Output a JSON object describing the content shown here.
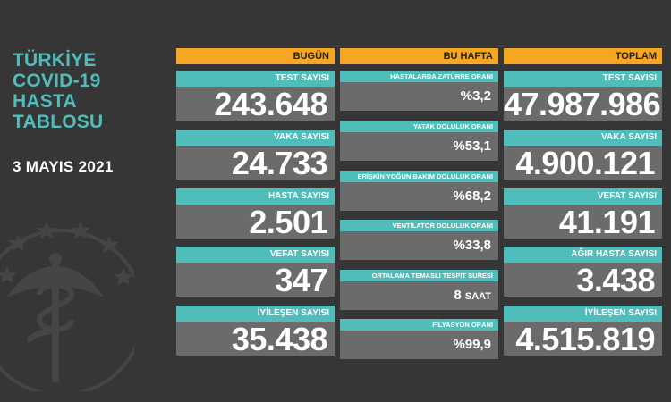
{
  "title_lines": [
    "TÜRKİYE",
    "COVID-19",
    "HASTA",
    "TABLOSU"
  ],
  "date": "3 MAYIS 2021",
  "columns": {
    "today": {
      "header": "BUGÜN",
      "cards": [
        {
          "label": "TEST SAYISI",
          "value": "243.648"
        },
        {
          "label": "VAKA SAYISI",
          "value": "24.733"
        },
        {
          "label": "HASTA SAYISI",
          "value": "2.501"
        },
        {
          "label": "VEFAT SAYISI",
          "value": "347"
        },
        {
          "label": "İYİLEŞEN SAYISI",
          "value": "35.438"
        }
      ]
    },
    "week": {
      "header": "BU HAFTA",
      "cards": [
        {
          "label": "HASTALARDA ZATÜRRE ORANI",
          "value": "%3,2"
        },
        {
          "label": "YATAK DOLULUK ORANI",
          "value": "%53,1"
        },
        {
          "label": "ERİŞKİN YOĞUN BAKIM DOLULUK ORANI",
          "value": "%68,2"
        },
        {
          "label": "VENTİLATÖR DOLULUK ORANI",
          "value": "%33,8"
        },
        {
          "label": "ORTALAMA TEMASLI TESPİT SÜRESİ",
          "value": "8",
          "unit": "SAAT"
        },
        {
          "label": "FİLYASYON ORANI",
          "value": "%99,9"
        }
      ]
    },
    "total": {
      "header": "TOPLAM",
      "cards": [
        {
          "label": "TEST SAYISI",
          "value": "47.987.986"
        },
        {
          "label": "VAKA SAYISI",
          "value": "4.900.121"
        },
        {
          "label": "VEFAT SAYISI",
          "value": "41.191"
        },
        {
          "label": "AĞIR HASTA SAYISI",
          "value": "3.438"
        },
        {
          "label": "İYİLEŞEN SAYISI",
          "value": "4.515.819"
        }
      ]
    }
  },
  "colors": {
    "background": "#363636",
    "header_orange": "#f5a623",
    "label_teal": "#4fbdba",
    "value_gray": "#6b6b6b",
    "title_teal": "#4fbdba"
  },
  "emblem_icon": "ministry-of-health-emblem-icon"
}
